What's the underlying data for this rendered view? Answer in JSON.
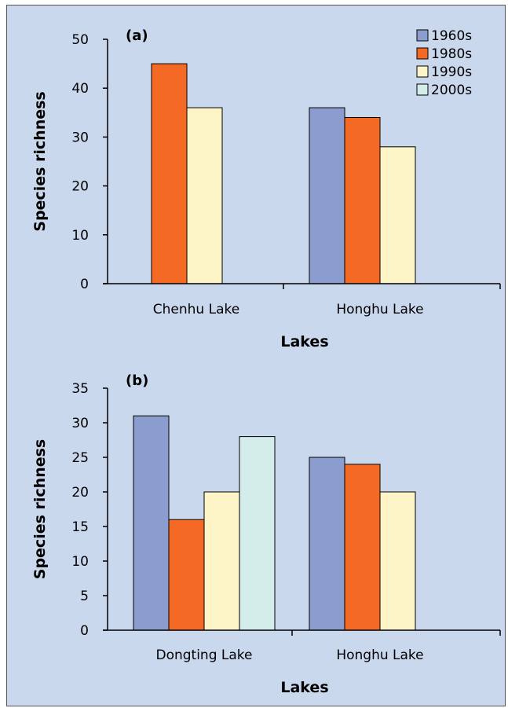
{
  "colors": {
    "background": "#cad8ee",
    "series": [
      "#8b9dcf",
      "#f46a24",
      "#fdf4c7",
      "#d4ecea"
    ]
  },
  "legend": {
    "placement": "top-right",
    "items": [
      "1960s",
      "1980s",
      "1990s",
      "2000s"
    ]
  },
  "chart_data": [
    {
      "type": "bar",
      "panel_label": "(a)",
      "xlabel": "Lakes",
      "ylabel": "Species richness",
      "ylim": [
        0,
        50
      ],
      "yticks": [
        0,
        10,
        20,
        30,
        40,
        50
      ],
      "categories": [
        "Chenhu Lake",
        "Honghu Lake"
      ],
      "series": [
        {
          "name": "1960s",
          "values": [
            null,
            36
          ]
        },
        {
          "name": "1980s",
          "values": [
            45,
            34
          ]
        },
        {
          "name": "1990s",
          "values": [
            36,
            28
          ]
        },
        {
          "name": "2000s",
          "values": [
            null,
            null
          ]
        }
      ]
    },
    {
      "type": "bar",
      "panel_label": "(b)",
      "xlabel": "Lakes",
      "ylabel": "Species richness",
      "ylim": [
        0,
        35
      ],
      "yticks": [
        0,
        5,
        10,
        15,
        20,
        25,
        30,
        35
      ],
      "categories": [
        "Dongting Lake",
        "Honghu Lake"
      ],
      "series": [
        {
          "name": "1960s",
          "values": [
            31,
            25
          ]
        },
        {
          "name": "1980s",
          "values": [
            16,
            24
          ]
        },
        {
          "name": "1990s",
          "values": [
            20,
            20
          ]
        },
        {
          "name": "2000s",
          "values": [
            28,
            null
          ]
        }
      ]
    }
  ]
}
